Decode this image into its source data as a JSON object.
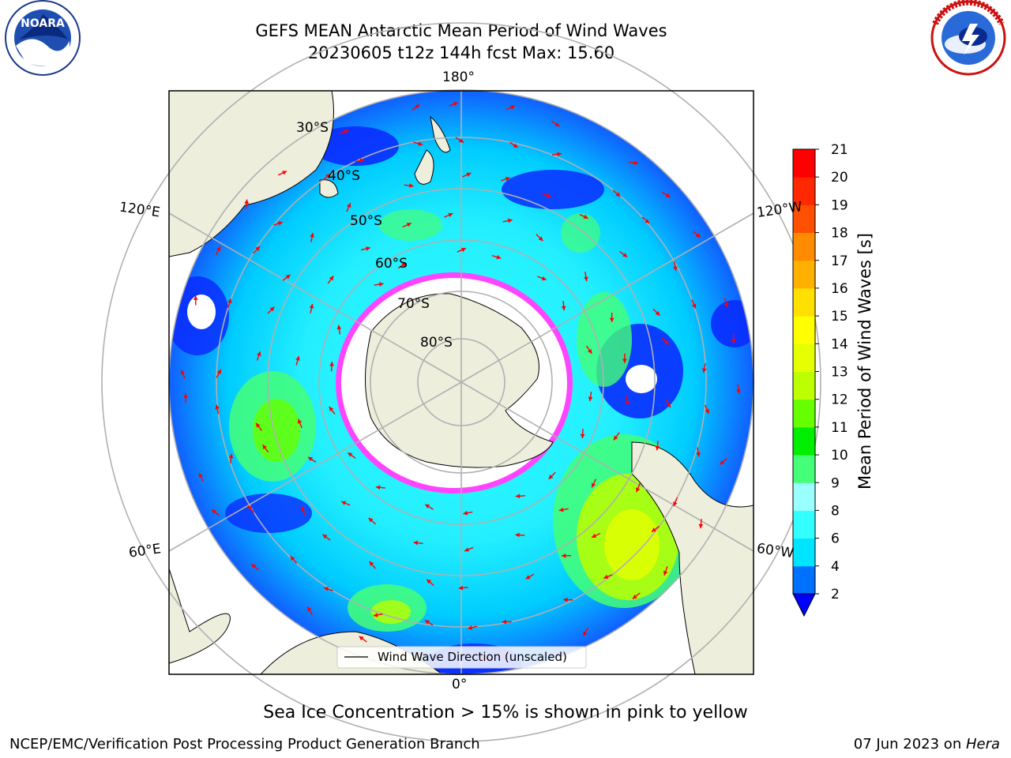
{
  "header": {
    "title_line1": "GEFS MEAN Antarctic Mean Period of Wind Waves",
    "title_line2": "20230605 t12z 144h fcst   Max: 15.60"
  },
  "logos": {
    "left": {
      "name": "NOARA",
      "ring_text": "NATIONAL OCEANIC AND ATMOSPHERIC ADMINISTRATION · U.S. DEPARTMENT OF COMMERCE"
    },
    "right": {
      "ring_text": "NATIONAL WEATHER SERVICE"
    }
  },
  "map": {
    "longitude_labels": {
      "top": "180°",
      "bottom": "0°",
      "left_upper": "120°E",
      "left_lower": "60°E",
      "right_upper": "120°W",
      "right_lower": "60°W"
    },
    "latitude_labels": [
      "30°S",
      "40°S",
      "50°S",
      "60°S",
      "70°S",
      "80°S"
    ],
    "legend": "Wind Wave Direction (unscaled)",
    "colors": {
      "ocean_low": "#0000ff",
      "ocean_mid": "#00e5ff",
      "ocean_high": "#7fff00",
      "land": "#eeeedd",
      "sea_ice_edge": "#ff44ff",
      "arrows": "#ff0000"
    }
  },
  "colorbar": {
    "title": "Mean Period of Wind Waves [s]",
    "ticks": [
      "2",
      "4",
      "6",
      "8",
      "9",
      "10",
      "11",
      "12",
      "13",
      "14",
      "15",
      "16",
      "17",
      "18",
      "19",
      "20",
      "21"
    ],
    "colors": [
      "#0070ff",
      "#00e5ff",
      "#33ffff",
      "#99ffff",
      "#44ff77",
      "#00ee00",
      "#66ff00",
      "#bbff00",
      "#e6ff00",
      "#ffff00",
      "#ffe000",
      "#ffb000",
      "#ff8c00",
      "#ff5000",
      "#ff2800",
      "#ff0000"
    ],
    "extend_color": "#0000ff"
  },
  "notes": {
    "sea_ice": "Sea Ice Concentration > 15% is shown in pink to yellow"
  },
  "footer": {
    "left": "NCEP/EMC/Verification Post Processing Product Generation Branch",
    "date": "07 Jun 2023 on ",
    "host": "Hera"
  }
}
